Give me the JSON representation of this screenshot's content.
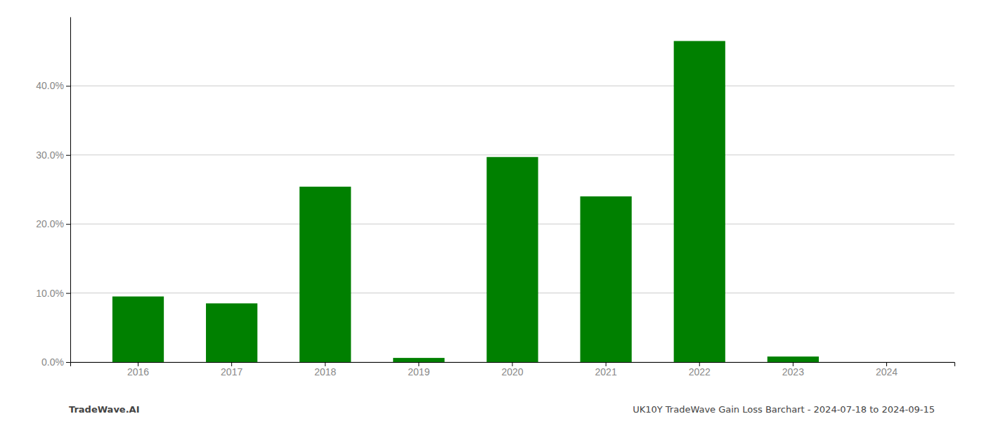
{
  "chart_data": {
    "type": "bar",
    "categories": [
      "2016",
      "2017",
      "2018",
      "2019",
      "2020",
      "2021",
      "2022",
      "2023",
      "2024"
    ],
    "values": [
      0.095,
      0.085,
      0.254,
      0.006,
      0.297,
      0.24,
      0.465,
      0.008,
      0.0
    ],
    "color": "#008000",
    "ylim": [
      0,
      0.5
    ],
    "yticks": [
      {
        "value": 0.0,
        "label": "0.0%"
      },
      {
        "value": 0.1,
        "label": "10.0%"
      },
      {
        "value": 0.2,
        "label": "20.0%"
      },
      {
        "value": 0.3,
        "label": "30.0%"
      },
      {
        "value": 0.4,
        "label": "40.0%"
      }
    ],
    "grid": true,
    "annotations": [
      "TradeWave.AI",
      "UK10Y TradeWave Gain Loss Barchart - 2024-07-18 to 2024-09-15"
    ]
  }
}
